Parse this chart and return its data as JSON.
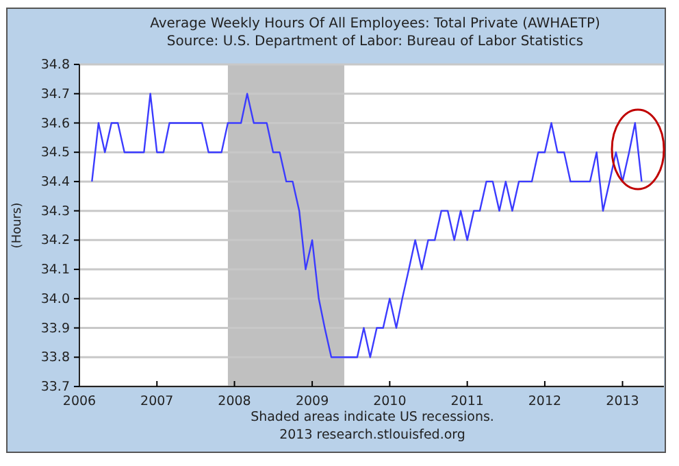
{
  "chart_data": {
    "type": "line",
    "title": "Average Weekly Hours Of All Employees: Total Private (AWHAETP)",
    "subtitle": "Source: U.S. Department of Labor: Bureau of Labor Statistics",
    "ylabel": "(Hours)",
    "annotations": [
      "Shaded areas indicate US recessions.",
      "2013 research.stlouisfed.org"
    ],
    "x": [
      "2006-03",
      "2006-04",
      "2006-05",
      "2006-06",
      "2006-07",
      "2006-08",
      "2006-09",
      "2006-10",
      "2006-11",
      "2006-12",
      "2007-01",
      "2007-02",
      "2007-03",
      "2007-04",
      "2007-05",
      "2007-06",
      "2007-07",
      "2007-08",
      "2007-09",
      "2007-10",
      "2007-11",
      "2007-12",
      "2008-01",
      "2008-02",
      "2008-03",
      "2008-04",
      "2008-05",
      "2008-06",
      "2008-07",
      "2008-08",
      "2008-09",
      "2008-10",
      "2008-11",
      "2008-12",
      "2009-01",
      "2009-02",
      "2009-03",
      "2009-04",
      "2009-05",
      "2009-06",
      "2009-07",
      "2009-08",
      "2009-09",
      "2009-10",
      "2009-11",
      "2009-12",
      "2010-01",
      "2010-02",
      "2010-03",
      "2010-04",
      "2010-05",
      "2010-06",
      "2010-07",
      "2010-08",
      "2010-09",
      "2010-10",
      "2010-11",
      "2010-12",
      "2011-01",
      "2011-02",
      "2011-03",
      "2011-04",
      "2011-05",
      "2011-06",
      "2011-07",
      "2011-08",
      "2011-09",
      "2011-10",
      "2011-11",
      "2011-12",
      "2012-01",
      "2012-02",
      "2012-03",
      "2012-04",
      "2012-05",
      "2012-06",
      "2012-07",
      "2012-08",
      "2012-09",
      "2012-10",
      "2012-11",
      "2012-12",
      "2013-01",
      "2013-02",
      "2013-03",
      "2013-04"
    ],
    "series": [
      {
        "color": "#3b3bff",
        "values": [
          34.4,
          34.6,
          34.5,
          34.6,
          34.6,
          34.5,
          34.5,
          34.5,
          34.5,
          34.7,
          34.5,
          34.5,
          34.6,
          34.6,
          34.6,
          34.6,
          34.6,
          34.6,
          34.5,
          34.5,
          34.5,
          34.6,
          34.6,
          34.6,
          34.7,
          34.6,
          34.6,
          34.6,
          34.5,
          34.5,
          34.4,
          34.4,
          34.3,
          34.1,
          34.2,
          34.0,
          33.9,
          33.8,
          33.8,
          33.8,
          33.8,
          33.8,
          33.9,
          33.8,
          33.9,
          33.9,
          34.0,
          33.9,
          34.0,
          34.1,
          34.2,
          34.1,
          34.2,
          34.2,
          34.3,
          34.3,
          34.2,
          34.3,
          34.2,
          34.3,
          34.3,
          34.4,
          34.4,
          34.3,
          34.4,
          34.3,
          34.4,
          34.4,
          34.4,
          34.5,
          34.5,
          34.6,
          34.5,
          34.5,
          34.4,
          34.4,
          34.4,
          34.4,
          34.5,
          34.3,
          34.4,
          34.5,
          34.4,
          34.5,
          34.6,
          34.4
        ]
      }
    ],
    "xlim": [
      "2006-01-01",
      "2013-07-15"
    ],
    "xticks": [
      "2006",
      "2007",
      "2008",
      "2009",
      "2010",
      "2011",
      "2012",
      "2013"
    ],
    "ylim": [
      33.7,
      34.8
    ],
    "yticks": [
      33.7,
      33.8,
      33.9,
      {
        "value": 34,
        "label": "34.0"
      },
      34.1,
      34.2,
      34.3,
      34.4,
      34.5,
      34.6,
      34.7,
      34.8
    ],
    "bands": [
      {
        "axis": "x",
        "from": "2007-12",
        "to": "2009-06",
        "color": "#c0c0c0"
      }
    ],
    "grid": "y"
  }
}
